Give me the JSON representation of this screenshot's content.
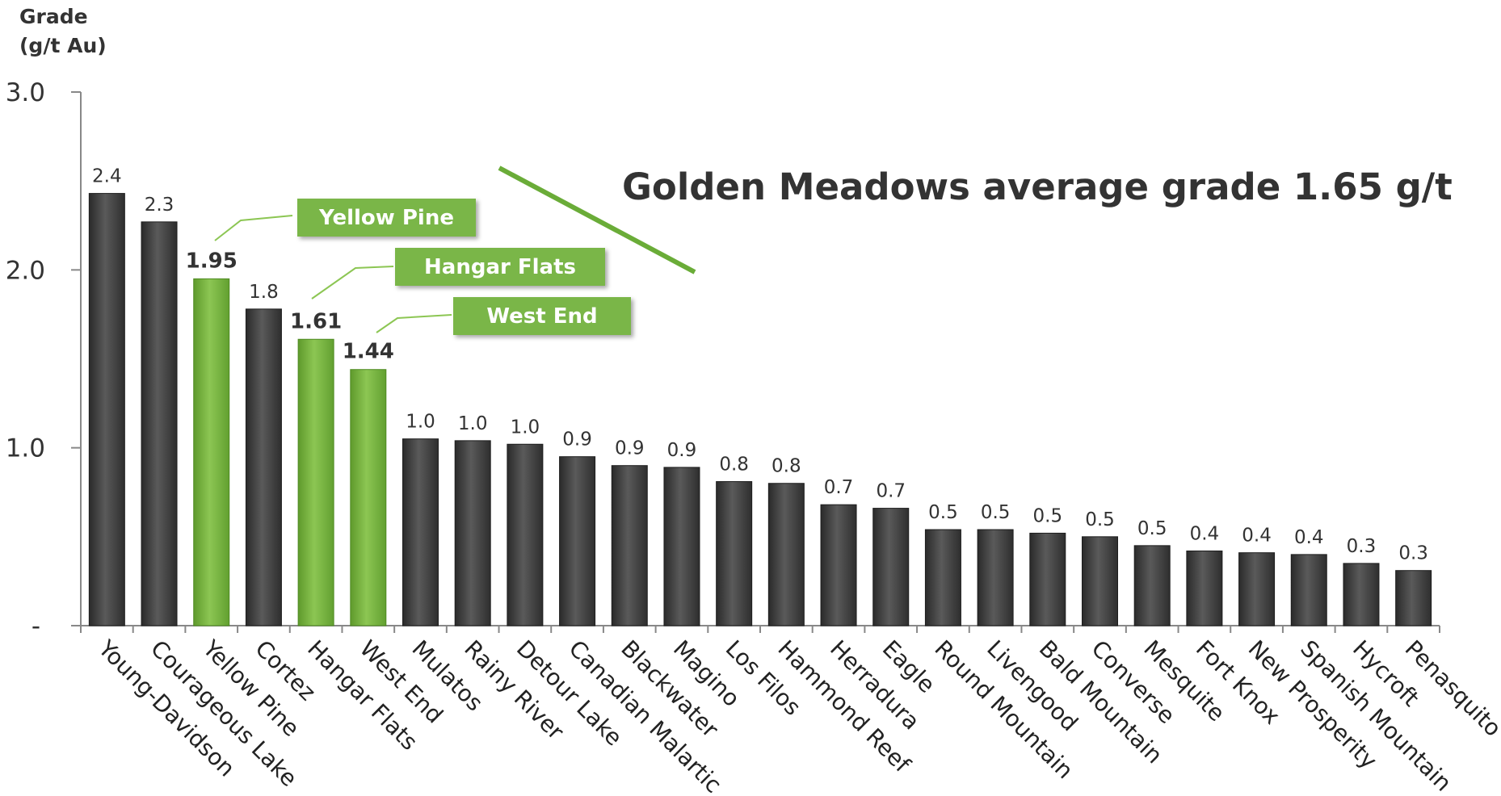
{
  "colors": {
    "standard_bar": "#3d3d3d",
    "highlight_bar": "#7ab648",
    "axis": "#888888",
    "text": "#333333",
    "headline_line": "#6aac38"
  },
  "y_axis_title": [
    "Grade",
    "(g/t Au)"
  ],
  "headline": "Golden Meadows average grade 1.65 g/t",
  "callouts": [
    "Yellow Pine",
    "Hangar Flats",
    "West End"
  ],
  "chart_data": {
    "type": "bar",
    "ylabel": "Grade (g/t Au)",
    "ylim": [
      0,
      3.0
    ],
    "yticks": [
      "-",
      "1.0",
      "2.0",
      "3.0"
    ],
    "grid": false,
    "categories": [
      "Young-Davidson",
      "Courageous Lake",
      "Yellow Pine",
      "Cortez",
      "Hangar Flats",
      "West End",
      "Mulatos",
      "Rainy River",
      "Detour Lake",
      "Canadian Malartic",
      "Blackwater",
      "Magino",
      "Los Filos",
      "Hammond Reef",
      "Herradura",
      "Eagle",
      "Round Mountain",
      "Livengood",
      "Bald Mountain",
      "Converse",
      "Mesquite",
      "Fort Knox",
      "New Prosperity",
      "Spanish Mountain",
      "Hycroft",
      "Penasquito"
    ],
    "values": [
      2.43,
      2.27,
      1.95,
      1.78,
      1.61,
      1.44,
      1.05,
      1.04,
      1.02,
      0.95,
      0.9,
      0.89,
      0.81,
      0.8,
      0.68,
      0.66,
      0.54,
      0.54,
      0.52,
      0.5,
      0.45,
      0.42,
      0.41,
      0.4,
      0.35,
      0.31
    ],
    "data_labels": [
      "2.4",
      "2.3",
      "1.95",
      "1.8",
      "1.61",
      "1.44",
      "1.0",
      "1.0",
      "1.0",
      "0.9",
      "0.9",
      "0.9",
      "0.8",
      "0.8",
      "0.7",
      "0.7",
      "0.5",
      "0.5",
      "0.5",
      "0.5",
      "0.5",
      "0.4",
      "0.4",
      "0.4",
      "0.3",
      "0.3"
    ],
    "highlighted": [
      "Yellow Pine",
      "Hangar Flats",
      "West End"
    ]
  }
}
